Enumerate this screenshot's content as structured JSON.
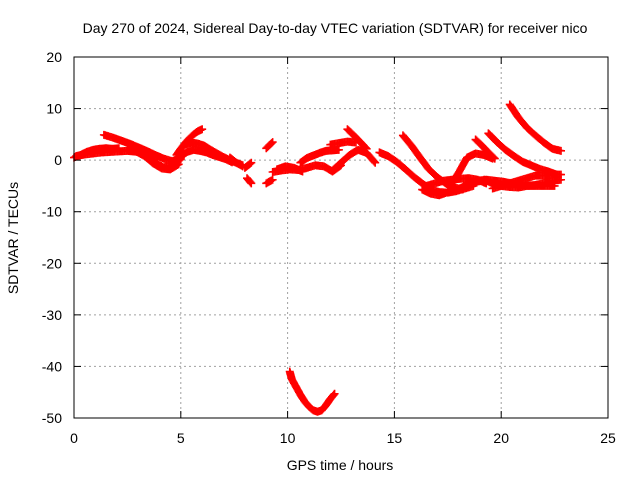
{
  "chart_data": {
    "type": "scatter",
    "title": "Day 270 of 2024, Sidereal Day-to-day VTEC variation (SDTVAR) for receiver nico",
    "xlabel": "GPS time / hours",
    "ylabel": "SDTVAR / TECUs",
    "xlim": [
      0,
      25
    ],
    "ylim": [
      -50,
      20
    ],
    "xticks": [
      0,
      5,
      10,
      15,
      20,
      25
    ],
    "yticks": [
      -50,
      -40,
      -30,
      -20,
      -10,
      0,
      10,
      20
    ],
    "grid": true,
    "marker": "plus",
    "color": "#ff0000",
    "series": [
      {
        "name": "s1",
        "x": [
          0.0,
          0.3,
          0.6,
          0.9,
          1.2,
          1.5,
          1.8,
          2.1
        ],
        "y": [
          0.5,
          1.0,
          1.6,
          2.0,
          2.2,
          2.3,
          2.2,
          2.3
        ]
      },
      {
        "name": "s2",
        "x": [
          0.1,
          0.5,
          0.9,
          1.3,
          1.7,
          2.1,
          2.5,
          3.0,
          3.4,
          3.8,
          4.2,
          4.6,
          5.0
        ],
        "y": [
          0.8,
          1.1,
          1.3,
          1.5,
          1.6,
          1.7,
          1.8,
          1.6,
          0.8,
          -0.5,
          -1.4,
          -1.0,
          0.2
        ]
      },
      {
        "name": "s3",
        "x": [
          1.4,
          1.8,
          2.2,
          2.6,
          3.0,
          3.4,
          3.8,
          4.2,
          4.6,
          5.0
        ],
        "y": [
          4.9,
          4.4,
          3.8,
          3.2,
          2.5,
          1.8,
          1.0,
          0.3,
          -0.2,
          0.5
        ]
      },
      {
        "name": "s4",
        "x": [
          2.5,
          2.9,
          3.3,
          3.7,
          4.1,
          4.5,
          4.9
        ],
        "y": [
          2.0,
          1.7,
          0.8,
          -0.6,
          -1.6,
          -1.8,
          -0.8
        ]
      },
      {
        "name": "s5",
        "x": [
          4.8,
          5.0,
          5.2,
          5.4,
          5.6,
          5.8,
          6.0
        ],
        "y": [
          1.0,
          2.2,
          3.3,
          4.2,
          5.0,
          5.6,
          6.0
        ]
      },
      {
        "name": "s6",
        "x": [
          4.7,
          5.0,
          5.3,
          5.6,
          5.9,
          6.2,
          6.5,
          6.8,
          7.1,
          7.4
        ],
        "y": [
          -0.3,
          0.8,
          1.6,
          2.0,
          1.8,
          1.5,
          1.0,
          0.6,
          0.2,
          -0.4
        ]
      },
      {
        "name": "s7",
        "x": [
          5.2,
          5.5,
          5.8,
          6.1,
          6.4,
          6.7,
          7.0,
          7.3,
          7.6,
          7.9
        ],
        "y": [
          3.0,
          3.4,
          3.2,
          2.8,
          2.0,
          1.3,
          0.6,
          0.0,
          -0.5,
          -1.2
        ]
      },
      {
        "name": "s8",
        "x": [
          7.3,
          7.6,
          7.9
        ],
        "y": [
          0.5,
          -0.5,
          -1.0
        ]
      },
      {
        "name": "s9",
        "x": [
          8.0,
          8.3
        ],
        "y": [
          -1.5,
          -0.5
        ]
      },
      {
        "name": "s10",
        "x": [
          8.1,
          8.3
        ],
        "y": [
          -3.5,
          -4.5
        ]
      },
      {
        "name": "s11",
        "x": [
          9.0,
          9.3
        ],
        "y": [
          2.3,
          3.5
        ]
      },
      {
        "name": "s12",
        "x": [
          9.0,
          9.3
        ],
        "y": [
          -4.5,
          -3.8
        ]
      },
      {
        "name": "s13",
        "x": [
          9.3,
          9.7,
          10.1,
          10.5,
          10.9,
          11.3,
          11.7,
          12.1,
          12.5
        ],
        "y": [
          -2.3,
          -2.0,
          -1.8,
          -1.9,
          -1.5,
          -1.0,
          -1.2,
          -2.2,
          -1.0
        ]
      },
      {
        "name": "s14",
        "x": [
          9.5,
          9.9,
          10.3,
          10.7
        ],
        "y": [
          -1.8,
          -1.2,
          -1.5,
          -2.2
        ]
      },
      {
        "name": "s15",
        "x": [
          10.6,
          10.9,
          11.2,
          11.5,
          11.8,
          12.1,
          12.4
        ],
        "y": [
          -0.5,
          0.4,
          0.9,
          1.4,
          1.8,
          1.9,
          2.0
        ]
      },
      {
        "name": "s16",
        "x": [
          12.1,
          12.5,
          12.9,
          13.3,
          13.7,
          14.1
        ],
        "y": [
          -2.0,
          -0.5,
          1.0,
          2.0,
          1.4,
          -0.5
        ]
      },
      {
        "name": "s17",
        "x": [
          12.0,
          12.4,
          12.8,
          13.2
        ],
        "y": [
          3.0,
          3.3,
          3.6,
          3.4
        ]
      },
      {
        "name": "s18",
        "x": [
          12.8,
          13.1,
          13.4,
          13.7
        ],
        "y": [
          6.0,
          4.8,
          3.5,
          2.2
        ]
      },
      {
        "name": "s19",
        "x": [
          10.1,
          10.2,
          10.4,
          10.6,
          10.8,
          11.0,
          11.2,
          11.4,
          11.6,
          11.8,
          12.0,
          12.2
        ],
        "y": [
          -41.0,
          -42.5,
          -44.0,
          -45.5,
          -46.8,
          -47.8,
          -48.5,
          -48.8,
          -48.5,
          -47.5,
          -46.3,
          -45.3
        ]
      },
      {
        "name": "s20",
        "x": [
          14.3,
          14.7,
          15.1,
          15.5,
          15.9,
          16.3,
          16.7,
          17.1,
          17.5,
          17.9,
          18.3,
          18.7
        ],
        "y": [
          1.5,
          0.8,
          -0.3,
          -1.7,
          -3.2,
          -4.5,
          -5.7,
          -6.2,
          -6.3,
          -6.0,
          -5.5,
          -5.0
        ]
      },
      {
        "name": "s21",
        "x": [
          15.4,
          15.8,
          16.2,
          16.6,
          17.0,
          17.4,
          17.8,
          18.2
        ],
        "y": [
          4.8,
          2.8,
          0.5,
          -1.7,
          -3.3,
          -4.5,
          -5.3,
          -5.7
        ]
      },
      {
        "name": "s22",
        "x": [
          16.3,
          16.7,
          17.1,
          17.5,
          17.9,
          18.3,
          18.7,
          19.1
        ],
        "y": [
          -5.7,
          -6.5,
          -6.8,
          -6.2,
          -5.8,
          -5.0,
          -4.3,
          -4.0
        ]
      },
      {
        "name": "s23",
        "x": [
          16.5,
          16.9,
          17.3,
          17.7,
          18.1,
          18.5,
          18.9,
          19.3
        ],
        "y": [
          -5.0,
          -4.5,
          -4.0,
          -3.8,
          -3.6,
          -3.5,
          -3.8,
          -4.5
        ]
      },
      {
        "name": "s24",
        "x": [
          17.6,
          18.0,
          18.4,
          18.8,
          19.2,
          19.6
        ],
        "y": [
          -5.0,
          -2.5,
          0.5,
          1.3,
          1.0,
          0.3
        ]
      },
      {
        "name": "s25",
        "x": [
          18.5,
          18.9,
          19.3,
          19.7,
          20.1,
          20.5,
          20.9,
          21.3,
          21.7,
          22.1,
          22.5
        ],
        "y": [
          -4.5,
          -4.0,
          -3.8,
          -4.0,
          -4.2,
          -4.5,
          -4.8,
          -5.0,
          -5.0,
          -5.0,
          -5.0
        ]
      },
      {
        "name": "s26",
        "x": [
          19.2,
          19.6,
          20.0,
          20.4,
          20.8,
          21.2,
          21.6,
          22.0,
          22.4,
          22.8
        ],
        "y": [
          -3.8,
          -4.5,
          -5.0,
          -5.2,
          -5.3,
          -5.0,
          -4.8,
          -4.5,
          -4.0,
          -3.8
        ]
      },
      {
        "name": "s27",
        "x": [
          19.6,
          20.0,
          20.4,
          20.8,
          21.2,
          21.6,
          22.0,
          22.4,
          22.8
        ],
        "y": [
          -5.5,
          -5.0,
          -4.5,
          -4.0,
          -3.5,
          -3.0,
          -3.0,
          -2.8,
          -2.8
        ]
      },
      {
        "name": "s28",
        "x": [
          18.8,
          19.1,
          19.4,
          19.7
        ],
        "y": [
          4.0,
          2.8,
          1.5,
          0.3
        ]
      },
      {
        "name": "s29",
        "x": [
          19.4,
          19.8,
          20.2,
          20.6,
          21.0,
          21.4,
          21.8,
          22.2,
          22.6
        ],
        "y": [
          5.2,
          3.5,
          2.0,
          0.8,
          -0.3,
          -1.0,
          -1.7,
          -2.2,
          -2.8
        ]
      },
      {
        "name": "s30",
        "x": [
          20.4,
          20.8,
          21.2,
          21.6,
          22.0,
          22.4,
          22.8
        ],
        "y": [
          10.8,
          8.3,
          6.3,
          4.8,
          3.4,
          2.2,
          1.8
        ]
      }
    ]
  }
}
